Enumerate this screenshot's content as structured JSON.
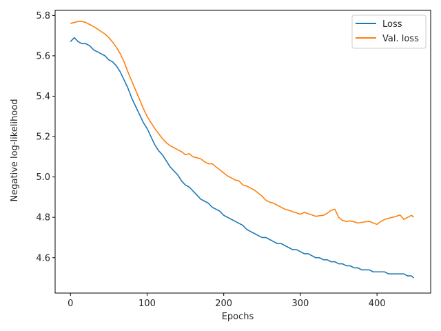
{
  "chart_data": {
    "type": "line",
    "xlabel": "Epochs",
    "ylabel": "Negative log-likelihood",
    "xlim": [
      -20,
      470
    ],
    "ylim": [
      4.425,
      5.825
    ],
    "x_ticks": [
      0,
      100,
      200,
      300,
      400
    ],
    "x_tick_labels": [
      "0",
      "100",
      "200",
      "300",
      "400"
    ],
    "y_ticks": [
      4.6,
      4.8,
      5.0,
      5.2,
      5.4,
      5.6,
      5.8
    ],
    "y_tick_labels": [
      "4.6",
      "4.8",
      "5.0",
      "5.2",
      "5.4",
      "5.6",
      "5.8"
    ],
    "grid": false,
    "legend_position": "top-right",
    "series": [
      {
        "name": "Loss",
        "color": "#1f77b4",
        "x": [
          0,
          5,
          10,
          15,
          20,
          25,
          30,
          35,
          40,
          45,
          50,
          55,
          60,
          65,
          70,
          75,
          80,
          85,
          90,
          95,
          100,
          105,
          110,
          115,
          120,
          125,
          130,
          135,
          140,
          145,
          150,
          155,
          160,
          165,
          170,
          175,
          180,
          185,
          190,
          195,
          200,
          205,
          210,
          215,
          220,
          225,
          230,
          235,
          240,
          245,
          250,
          255,
          260,
          265,
          270,
          275,
          280,
          285,
          290,
          295,
          300,
          305,
          310,
          315,
          320,
          325,
          330,
          335,
          340,
          345,
          350,
          355,
          360,
          365,
          370,
          375,
          380,
          385,
          390,
          395,
          400,
          405,
          410,
          415,
          420,
          425,
          430,
          435,
          440,
          445,
          448
        ],
        "y": [
          5.67,
          5.69,
          5.67,
          5.66,
          5.66,
          5.65,
          5.63,
          5.62,
          5.61,
          5.6,
          5.58,
          5.57,
          5.55,
          5.52,
          5.48,
          5.44,
          5.39,
          5.35,
          5.31,
          5.27,
          5.24,
          5.2,
          5.16,
          5.13,
          5.11,
          5.08,
          5.05,
          5.03,
          5.01,
          4.98,
          4.96,
          4.95,
          4.93,
          4.91,
          4.89,
          4.88,
          4.87,
          4.85,
          4.84,
          4.83,
          4.81,
          4.8,
          4.79,
          4.78,
          4.77,
          4.76,
          4.74,
          4.73,
          4.72,
          4.71,
          4.7,
          4.7,
          4.69,
          4.68,
          4.67,
          4.67,
          4.66,
          4.65,
          4.64,
          4.64,
          4.63,
          4.62,
          4.62,
          4.61,
          4.6,
          4.6,
          4.59,
          4.59,
          4.58,
          4.58,
          4.57,
          4.57,
          4.56,
          4.56,
          4.55,
          4.55,
          4.54,
          4.54,
          4.54,
          4.53,
          4.53,
          4.53,
          4.53,
          4.52,
          4.52,
          4.52,
          4.52,
          4.52,
          4.51,
          4.51,
          4.5
        ]
      },
      {
        "name": "Val. loss",
        "color": "#ff7f0e",
        "x": [
          0,
          5,
          10,
          15,
          20,
          25,
          30,
          35,
          40,
          45,
          50,
          55,
          60,
          65,
          70,
          75,
          80,
          85,
          90,
          95,
          100,
          105,
          110,
          115,
          120,
          125,
          130,
          135,
          140,
          145,
          150,
          155,
          160,
          165,
          170,
          175,
          180,
          185,
          190,
          195,
          200,
          205,
          210,
          215,
          220,
          225,
          230,
          235,
          240,
          245,
          250,
          255,
          260,
          265,
          270,
          275,
          280,
          285,
          290,
          295,
          300,
          305,
          310,
          315,
          320,
          325,
          330,
          335,
          340,
          345,
          350,
          355,
          360,
          365,
          370,
          375,
          380,
          385,
          390,
          395,
          400,
          405,
          410,
          415,
          420,
          425,
          430,
          435,
          440,
          445,
          448
        ],
        "y": [
          5.76,
          5.765,
          5.77,
          5.77,
          5.765,
          5.755,
          5.745,
          5.733,
          5.72,
          5.708,
          5.69,
          5.668,
          5.642,
          5.61,
          5.57,
          5.52,
          5.475,
          5.43,
          5.385,
          5.34,
          5.3,
          5.27,
          5.24,
          5.215,
          5.19,
          5.17,
          5.155,
          5.145,
          5.135,
          5.125,
          5.11,
          5.115,
          5.1,
          5.095,
          5.09,
          5.075,
          5.065,
          5.065,
          5.05,
          5.035,
          5.02,
          5.005,
          4.995,
          4.985,
          4.98,
          4.96,
          4.955,
          4.945,
          4.935,
          4.92,
          4.905,
          4.885,
          4.875,
          4.87,
          4.86,
          4.85,
          4.84,
          4.835,
          4.828,
          4.822,
          4.815,
          4.825,
          4.818,
          4.812,
          4.805,
          4.808,
          4.81,
          4.82,
          4.835,
          4.84,
          4.8,
          4.785,
          4.78,
          4.782,
          4.778,
          4.772,
          4.775,
          4.778,
          4.78,
          4.772,
          4.765,
          4.78,
          4.79,
          4.795,
          4.8,
          4.805,
          4.812,
          4.79,
          4.8,
          4.81,
          4.8
        ]
      }
    ]
  }
}
